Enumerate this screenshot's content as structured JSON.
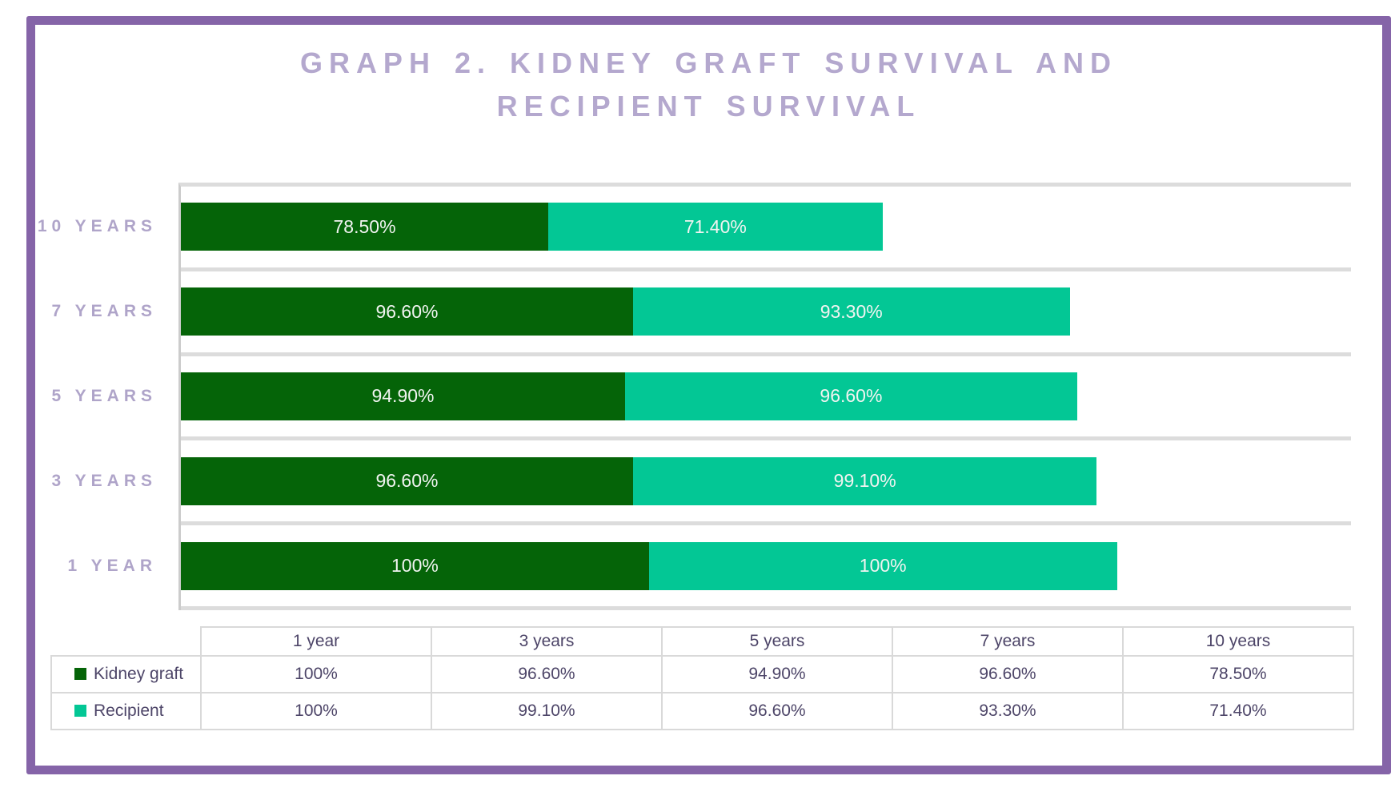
{
  "title": "GRAPH 2. KIDNEY GRAFT SURVIVAL AND RECIPIENT SURVIVAL",
  "colors": {
    "frame": "#8564A8",
    "title_text": "#B4A8CE",
    "category_label_text": "#AFA4C9",
    "kidney_graft": "#056408",
    "recipient": "#03C795",
    "gridline": "#DCDCDC",
    "axis_line": "#CCCCCC",
    "table_border": "#D9D9D9",
    "table_text": "#4D4568",
    "bar_label_text": "#F1F4F1"
  },
  "chart_data": {
    "type": "bar",
    "orientation": "horizontal",
    "stacked": true,
    "title": "GRAPH 2. KIDNEY GRAFT SURVIVAL AND RECIPIENT SURVIVAL",
    "categories": [
      "10 YEARS",
      "7 YEARS",
      "5 YEARS",
      "3 YEARS",
      "1 YEAR"
    ],
    "series": [
      {
        "name": "Kidney graft",
        "color": "#056408",
        "values": [
          78.5,
          96.6,
          94.9,
          96.6,
          100
        ],
        "labels": [
          "78.50%",
          "96.60%",
          "94.90%",
          "96.60%",
          "100%"
        ]
      },
      {
        "name": "Recipient",
        "color": "#03C795",
        "values": [
          71.4,
          93.3,
          96.6,
          99.1,
          100
        ],
        "labels": [
          "71.40%",
          "93.30%",
          "96.60%",
          "99.10%",
          "100%"
        ]
      }
    ],
    "xlim": [
      0,
      250
    ],
    "x_axis_tick_labels_visible": false,
    "gridlines": "horizontal category separators",
    "legend_position": "data-table-left",
    "data_labels": "inside-center"
  },
  "table": {
    "columns": [
      "1 year",
      "3 years",
      "5 years",
      "7 years",
      "10 years"
    ],
    "rows": [
      {
        "legend": "Kidney graft",
        "swatch_color": "#056408",
        "values": [
          "100%",
          "96.60%",
          "94.90%",
          "96.60%",
          "78.50%"
        ]
      },
      {
        "legend": "Recipient",
        "swatch_color": "#03C795",
        "values": [
          "100%",
          "99.10%",
          "96.60%",
          "93.30%",
          "71.40%"
        ]
      }
    ]
  }
}
